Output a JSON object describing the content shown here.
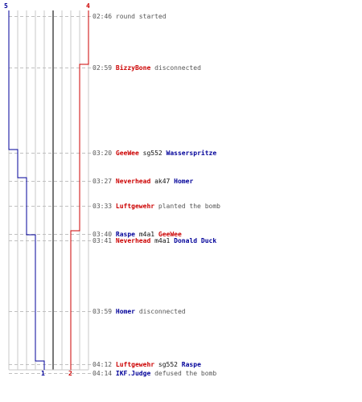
{
  "colors": {
    "ct": "#cc0000",
    "t": "#000099",
    "grid": "#c8c8c8",
    "dash": "#c0c0c0"
  },
  "counts": {
    "t_start": "5",
    "ct_start": "4",
    "t_end": "1",
    "ct_end": "2"
  },
  "events": [
    {
      "time": "02:46",
      "parts": [
        {
          "text": "round started",
          "type": "action"
        }
      ]
    },
    {
      "time": "02:59",
      "parts": [
        {
          "text": "BizzyBone",
          "type": "ct"
        },
        {
          "text": " disconnected",
          "type": "action"
        }
      ]
    },
    {
      "time": "03:20",
      "parts": [
        {
          "text": "GeeWee",
          "type": "ct"
        },
        {
          "text": " sg552 ",
          "type": "weapon"
        },
        {
          "text": "Wasserspritze",
          "type": "t"
        }
      ]
    },
    {
      "time": "03:27",
      "parts": [
        {
          "text": "Neverhead",
          "type": "ct"
        },
        {
          "text": " ak47 ",
          "type": "weapon"
        },
        {
          "text": "Homer",
          "type": "t"
        }
      ]
    },
    {
      "time": "03:33",
      "parts": [
        {
          "text": "Luftgewehr",
          "type": "ct"
        },
        {
          "text": " planted the bomb",
          "type": "action"
        }
      ]
    },
    {
      "time": "03:40",
      "parts": [
        {
          "text": "Raspe",
          "type": "t"
        },
        {
          "text": " m4a1 ",
          "type": "weapon"
        },
        {
          "text": "GeeWee",
          "type": "ct"
        }
      ]
    },
    {
      "time": "03:41",
      "parts": [
        {
          "text": "Neverhead",
          "type": "ct"
        },
        {
          "text": " m4a1 ",
          "type": "weapon"
        },
        {
          "text": "Donald Duck",
          "type": "t"
        }
      ]
    },
    {
      "time": "03:59",
      "parts": [
        {
          "text": "Homer",
          "type": "t"
        },
        {
          "text": " disconnected",
          "type": "action"
        }
      ]
    },
    {
      "time": "04:12",
      "parts": [
        {
          "text": "Luftgewehr",
          "type": "ct"
        },
        {
          "text": " sg552 ",
          "type": "weapon"
        },
        {
          "text": "Raspe",
          "type": "t"
        }
      ]
    },
    {
      "time": "04:14",
      "parts": [
        {
          "text": "IKF.Judge",
          "type": "t"
        },
        {
          "text": " defused the bomb",
          "type": "action"
        }
      ]
    }
  ]
}
